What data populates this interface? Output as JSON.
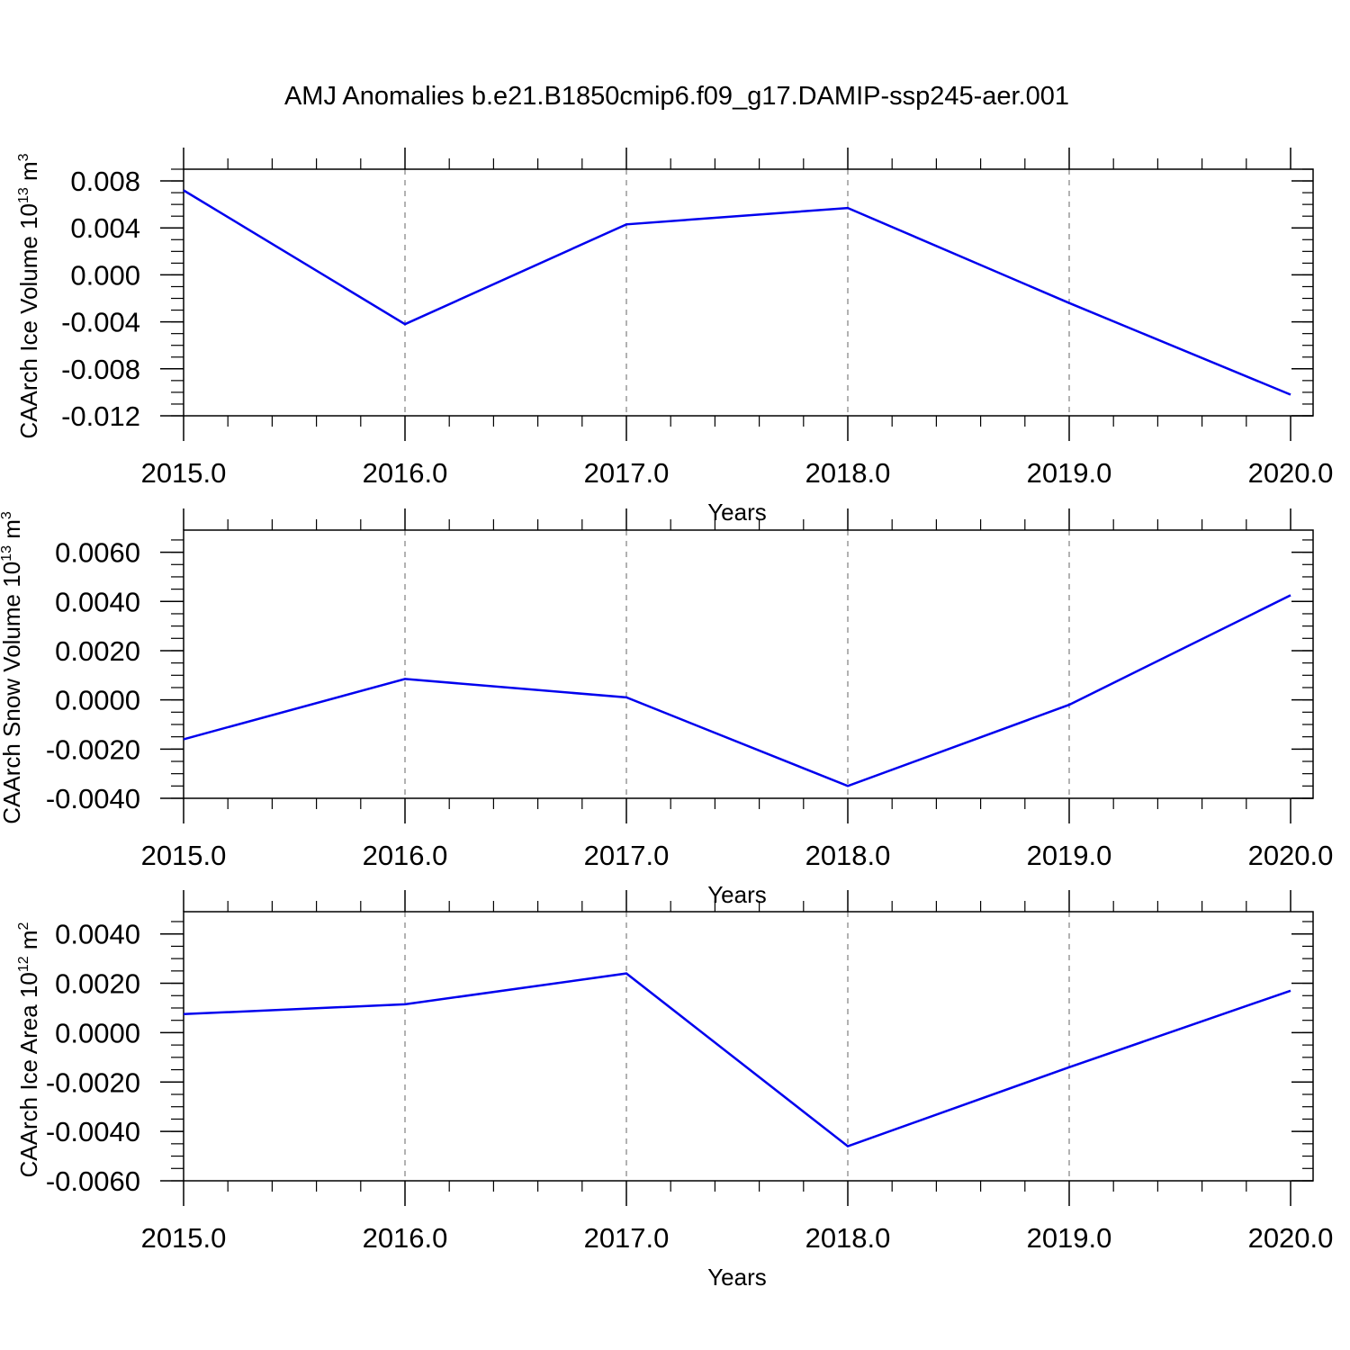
{
  "figure": {
    "title": "AMJ Anomalies b.e21.B1850cmip6.f09_g17.DAMIP-ssp245-aer.001"
  },
  "colors": {
    "line": "#0000ee",
    "axis": "#000000",
    "grid": "#999999"
  },
  "chart_data": [
    {
      "type": "line",
      "title": "",
      "xlabel": "Years",
      "ylabel": "CAArch Ice Volume",
      "ylabel_unit_base": "10",
      "ylabel_unit_exp": "13",
      "ylabel_unit_m": "m",
      "ylabel_unit_m_exp": "3",
      "x": [
        2015,
        2016,
        2017,
        2018,
        2019,
        2020
      ],
      "xlim": [
        2015,
        2020
      ],
      "ylim": [
        -0.012,
        0.009
      ],
      "x_ticks": [
        2015,
        2016,
        2017,
        2018,
        2019,
        2020
      ],
      "x_tick_labels": [
        "2015.0",
        "2016.0",
        "2017.0",
        "2018.0",
        "2019.0",
        "2020.0"
      ],
      "y_ticks": [
        0.008,
        0.004,
        0.0,
        -0.004,
        -0.008,
        -0.012
      ],
      "y_tick_labels": [
        "0.008",
        "0.004",
        "0.000",
        "-0.004",
        "-0.008",
        "-0.012"
      ],
      "grid": "vertical dashed",
      "series": [
        {
          "values": [
            0.0072,
            -0.0042,
            0.0043,
            0.0057,
            -0.0024,
            -0.0102
          ]
        }
      ]
    },
    {
      "type": "line",
      "title": "",
      "xlabel": "Years",
      "ylabel": "CAArch Snow Volume",
      "ylabel_unit_base": "10",
      "ylabel_unit_exp": "13",
      "ylabel_unit_m": "m",
      "ylabel_unit_m_exp": "3",
      "x": [
        2015,
        2016,
        2017,
        2018,
        2019,
        2020
      ],
      "xlim": [
        2015,
        2020
      ],
      "ylim": [
        -0.004,
        0.0069
      ],
      "x_ticks": [
        2015,
        2016,
        2017,
        2018,
        2019,
        2020
      ],
      "x_tick_labels": [
        "2015.0",
        "2016.0",
        "2017.0",
        "2018.0",
        "2019.0",
        "2020.0"
      ],
      "y_ticks": [
        0.006,
        0.004,
        0.002,
        0.0,
        -0.002,
        -0.004
      ],
      "y_tick_labels": [
        "0.0060",
        "0.0040",
        "0.0020",
        "0.0000",
        "-0.0020",
        "-0.0040"
      ],
      "grid": "vertical dashed",
      "series": [
        {
          "values": [
            -0.0016,
            0.00085,
            0.0001,
            -0.0035,
            -0.0002,
            0.00425
          ]
        }
      ]
    },
    {
      "type": "line",
      "title": "",
      "xlabel": "Years",
      "ylabel": "CAArch Ice Area",
      "ylabel_unit_base": "10",
      "ylabel_unit_exp": "12",
      "ylabel_unit_m": "m",
      "ylabel_unit_m_exp": "2",
      "x": [
        2015,
        2016,
        2017,
        2018,
        2019,
        2020
      ],
      "xlim": [
        2015,
        2020
      ],
      "ylim": [
        -0.006,
        0.0049
      ],
      "x_ticks": [
        2015,
        2016,
        2017,
        2018,
        2019,
        2020
      ],
      "x_tick_labels": [
        "2015.0",
        "2016.0",
        "2017.0",
        "2018.0",
        "2019.0",
        "2020.0"
      ],
      "y_ticks": [
        0.004,
        0.002,
        0.0,
        -0.002,
        -0.004,
        -0.006
      ],
      "y_tick_labels": [
        "0.0040",
        "0.0020",
        "0.0000",
        "-0.0020",
        "-0.0040",
        "-0.0060"
      ],
      "grid": "vertical dashed",
      "series": [
        {
          "values": [
            0.00075,
            0.00115,
            0.0024,
            -0.0046,
            -0.0014,
            0.0017
          ]
        }
      ]
    }
  ]
}
